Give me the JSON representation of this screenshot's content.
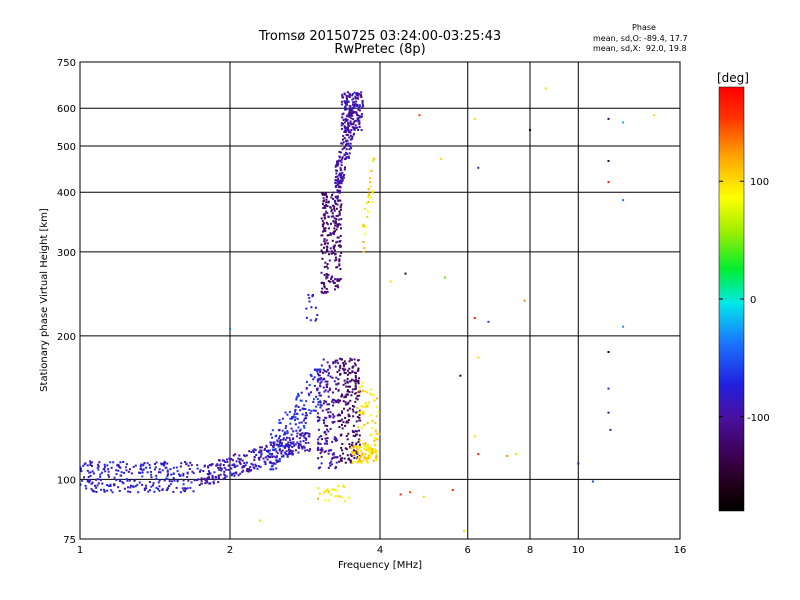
{
  "chart_data": {
    "type": "scatter",
    "title": "Tromsø 20150725 03:24:00-03:25:43",
    "subtitle": "RwPretec (8p)",
    "xlabel": "Frequency [MHz]",
    "ylabel": "Stationary phase Virtual Height [km]",
    "x_scale": "log",
    "y_scale": "log",
    "xlim": [
      1,
      16
    ],
    "ylim": [
      75,
      750
    ],
    "x_ticks": [
      1,
      2,
      4,
      6,
      8,
      10,
      16
    ],
    "y_ticks": [
      75,
      100,
      200,
      300,
      400,
      500,
      600,
      750
    ],
    "grid": true,
    "stats": {
      "heading": "Phase",
      "line_o": "mean, sd,O: -89.4, 17.7",
      "line_x": "mean, sd,X:  92.0, 19.8"
    },
    "colorbar": {
      "label": "[deg]",
      "ticks": [
        100,
        0,
        -100
      ],
      "range": [
        -180,
        180
      ],
      "placement": "right"
    },
    "clusters": [
      {
        "f": [
          1.0,
          1.75
        ],
        "h": [
          93,
          110
        ],
        "phase": -80,
        "n": 260,
        "trend": "flat"
      },
      {
        "f": [
          1.75,
          2.9
        ],
        "h": [
          98,
          125
        ],
        "phase": -92,
        "n": 300,
        "trend": "rise"
      },
      {
        "f": [
          2.4,
          3.05
        ],
        "h": [
          105,
          170
        ],
        "phase": -72,
        "n": 160,
        "trend": "rise"
      },
      {
        "f": [
          3.0,
          3.3
        ],
        "h": [
          105,
          180
        ],
        "phase": -100,
        "n": 170,
        "trend": "none"
      },
      {
        "f": [
          3.3,
          3.65
        ],
        "h": [
          108,
          180
        ],
        "phase": -125,
        "n": 210,
        "trend": "none"
      },
      {
        "f": [
          3.05,
          3.35
        ],
        "h": [
          245,
          400
        ],
        "phase": -118,
        "n": 220,
        "trend": "none"
      },
      {
        "f": [
          3.25,
          3.55
        ],
        "h": [
          380,
          620
        ],
        "phase": -100,
        "n": 160,
        "trend": "rise"
      },
      {
        "f": [
          3.35,
          3.7
        ],
        "h": [
          540,
          650
        ],
        "phase": -95,
        "n": 150,
        "trend": "none"
      },
      {
        "f": [
          2.8,
          3.0
        ],
        "h": [
          215,
          245
        ],
        "phase": -80,
        "n": 14,
        "trend": "none"
      },
      {
        "f": [
          3.5,
          3.95
        ],
        "h": [
          108,
          118
        ],
        "phase": 100,
        "n": 80,
        "trend": "none"
      },
      {
        "f": [
          3.6,
          4.0
        ],
        "h": [
          115,
          160
        ],
        "phase": 95,
        "n": 60,
        "trend": "none"
      },
      {
        "f": [
          3.7,
          3.9
        ],
        "h": [
          300,
          470
        ],
        "phase": 100,
        "n": 30,
        "trend": "rise"
      },
      {
        "f": [
          3.0,
          3.5
        ],
        "h": [
          90,
          97
        ],
        "phase": 95,
        "n": 25,
        "trend": "none"
      }
    ],
    "points": [
      {
        "f": 4.8,
        "h": 580,
        "phase": 150
      },
      {
        "f": 5.3,
        "h": 470,
        "phase": 100
      },
      {
        "f": 6.2,
        "h": 570,
        "phase": 100
      },
      {
        "f": 6.3,
        "h": 450,
        "phase": -80
      },
      {
        "f": 8.6,
        "h": 660,
        "phase": 100
      },
      {
        "f": 8.0,
        "h": 540,
        "phase": -160
      },
      {
        "f": 11.5,
        "h": 570,
        "phase": -130
      },
      {
        "f": 12.3,
        "h": 560,
        "phase": -20
      },
      {
        "f": 11.5,
        "h": 465,
        "phase": -140
      },
      {
        "f": 11.5,
        "h": 420,
        "phase": 170
      },
      {
        "f": 12.3,
        "h": 385,
        "phase": -40
      },
      {
        "f": 14.2,
        "h": 580,
        "phase": 100
      },
      {
        "f": 5.4,
        "h": 265,
        "phase": 40
      },
      {
        "f": 4.5,
        "h": 270,
        "phase": -150
      },
      {
        "f": 6.2,
        "h": 218,
        "phase": 160
      },
      {
        "f": 6.6,
        "h": 214,
        "phase": -60
      },
      {
        "f": 7.8,
        "h": 237,
        "phase": 130
      },
      {
        "f": 12.3,
        "h": 209,
        "phase": -30
      },
      {
        "f": 6.3,
        "h": 180,
        "phase": 100
      },
      {
        "f": 5.8,
        "h": 165,
        "phase": -150
      },
      {
        "f": 6.2,
        "h": 123,
        "phase": 100
      },
      {
        "f": 6.3,
        "h": 113,
        "phase": 160
      },
      {
        "f": 7.2,
        "h": 112,
        "phase": 130
      },
      {
        "f": 7.5,
        "h": 113,
        "phase": 100
      },
      {
        "f": 11.5,
        "h": 185,
        "phase": -150
      },
      {
        "f": 11.5,
        "h": 155,
        "phase": -70
      },
      {
        "f": 11.5,
        "h": 138,
        "phase": -110
      },
      {
        "f": 11.6,
        "h": 127,
        "phase": -100
      },
      {
        "f": 10.0,
        "h": 108,
        "phase": -110
      },
      {
        "f": 10.7,
        "h": 99,
        "phase": -60
      },
      {
        "f": 4.4,
        "h": 93,
        "phase": 160
      },
      {
        "f": 4.6,
        "h": 94,
        "phase": 150
      },
      {
        "f": 4.9,
        "h": 92,
        "phase": 100
      },
      {
        "f": 5.6,
        "h": 95,
        "phase": 160
      },
      {
        "f": 5.9,
        "h": 78,
        "phase": 100
      },
      {
        "f": 2.3,
        "h": 82,
        "phase": 100
      },
      {
        "f": 2.0,
        "h": 207,
        "phase": -40
      },
      {
        "f": 4.2,
        "h": 260,
        "phase": 100
      }
    ]
  }
}
